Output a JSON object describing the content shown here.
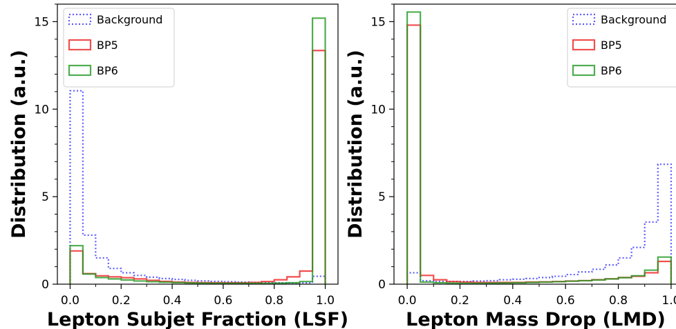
{
  "chart_data": [
    {
      "type": "histogram",
      "xlabel": "Lepton Subjet Fraction (LSF)",
      "ylabel": "Distribution (a.u.)",
      "xlim": [
        0,
        1
      ],
      "ylim": [
        0,
        16
      ],
      "xticks": [
        "0.0",
        "0.2",
        "0.4",
        "0.6",
        "0.8",
        "1.0"
      ],
      "yticks": [
        "0",
        "5",
        "10",
        "15"
      ],
      "legend_position": "top-left",
      "bin_edges": [
        0,
        0.05,
        0.1,
        0.15,
        0.2,
        0.25,
        0.3,
        0.35,
        0.4,
        0.45,
        0.5,
        0.55,
        0.6,
        0.65,
        0.7,
        0.75,
        0.8,
        0.85,
        0.9,
        0.95,
        1.0
      ],
      "series": [
        {
          "name": "Background",
          "color": "#3333ff",
          "style": "dotted",
          "values": [
            11.05,
            2.8,
            1.5,
            0.9,
            0.65,
            0.5,
            0.4,
            0.32,
            0.27,
            0.22,
            0.19,
            0.16,
            0.14,
            0.12,
            0.1,
            0.09,
            0.08,
            0.07,
            0.08,
            0.45
          ]
        },
        {
          "name": "BP5",
          "color": "#ee2222",
          "style": "solid",
          "values": [
            1.9,
            0.6,
            0.48,
            0.42,
            0.37,
            0.3,
            0.22,
            0.16,
            0.12,
            0.1,
            0.09,
            0.08,
            0.08,
            0.08,
            0.1,
            0.15,
            0.25,
            0.42,
            0.75,
            13.35
          ]
        },
        {
          "name": "BP6",
          "color": "#229922",
          "style": "solid",
          "values": [
            2.2,
            0.58,
            0.38,
            0.3,
            0.24,
            0.18,
            0.14,
            0.11,
            0.09,
            0.07,
            0.06,
            0.05,
            0.05,
            0.05,
            0.05,
            0.05,
            0.06,
            0.08,
            0.15,
            15.2
          ]
        }
      ]
    },
    {
      "type": "histogram",
      "xlabel": "Lepton Mass Drop (LMD)",
      "ylabel": "Distribution (a.u.)",
      "xlim": [
        0,
        1
      ],
      "ylim": [
        0,
        16
      ],
      "xticks": [
        "0.0",
        "0.2",
        "0.4",
        "0.6",
        "0.8",
        "1.0"
      ],
      "yticks": [
        "0",
        "5",
        "10",
        "15"
      ],
      "legend_position": "top-right",
      "bin_edges": [
        0,
        0.05,
        0.1,
        0.15,
        0.2,
        0.25,
        0.3,
        0.35,
        0.4,
        0.45,
        0.5,
        0.55,
        0.6,
        0.65,
        0.7,
        0.75,
        0.8,
        0.85,
        0.9,
        0.95,
        1.0
      ],
      "series": [
        {
          "name": "Background",
          "color": "#3333ff",
          "style": "dotted",
          "values": [
            0.65,
            0.2,
            0.15,
            0.15,
            0.15,
            0.18,
            0.2,
            0.25,
            0.28,
            0.32,
            0.38,
            0.45,
            0.55,
            0.7,
            0.85,
            1.1,
            1.5,
            2.1,
            3.55,
            6.85
          ]
        },
        {
          "name": "BP5",
          "color": "#ee2222",
          "style": "solid",
          "values": [
            14.8,
            0.5,
            0.25,
            0.15,
            0.12,
            0.1,
            0.1,
            0.1,
            0.1,
            0.12,
            0.13,
            0.15,
            0.18,
            0.2,
            0.25,
            0.3,
            0.38,
            0.45,
            0.65,
            1.3
          ]
        },
        {
          "name": "BP6",
          "color": "#229922",
          "style": "solid",
          "values": [
            15.55,
            0.12,
            0.08,
            0.06,
            0.05,
            0.05,
            0.06,
            0.07,
            0.08,
            0.1,
            0.12,
            0.14,
            0.17,
            0.2,
            0.24,
            0.3,
            0.37,
            0.48,
            0.8,
            1.55
          ]
        }
      ]
    }
  ]
}
